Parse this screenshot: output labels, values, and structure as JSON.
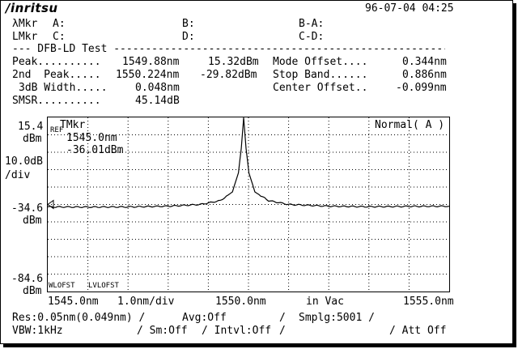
{
  "header": {
    "brand": "/inritsu",
    "datetime": "96-07-04 04:25"
  },
  "markers": {
    "row1_label": "λMkr",
    "a": "A:",
    "b": "B:",
    "ba": "B-A:",
    "row2_label": "LMkr",
    "c": "C:",
    "d": "D:",
    "cd": "C-D:"
  },
  "section": {
    "title": "--- DFB-LD Test -------------------------------------------------------"
  },
  "results": {
    "peak_label": "Peak..........",
    "peak_wl": "1549.88nm",
    "peak_level": "15.32dBm",
    "mode_offset_label": "Mode Offset....",
    "mode_offset_val": "0.344nm",
    "peak2_label": "2nd  Peak.....",
    "peak2_wl": "1550.224nm",
    "peak2_level": "-29.82dBm",
    "stop_band_label": "Stop Band......",
    "stop_band_val": "0.886nm",
    "width_label": "3dB Width.....",
    "width_val": "0.048nm",
    "center_offset_label": "Center Offset..",
    "center_offset_val": "-0.099nm",
    "smsr_label": "SMSR..........",
    "smsr_val": "45.14dB"
  },
  "axes": {
    "ytop": "15.4",
    "ytop_unit": "dBm",
    "scale": "10.0dB",
    "scale_unit": "/div",
    "yref": "-34.6",
    "yref_unit": "dBm",
    "ybot": "-84.6",
    "ybot_unit": "dBm",
    "xstart": "1545.0nm",
    "xdiv": "1.0nm/div",
    "xcenter": "1550.0nm",
    "xmedium": "in Vac",
    "xstop": "1555.0nm"
  },
  "plot_labels": {
    "ref": "REF",
    "tmkr": "TMkr",
    "tmkr_wl": "1545.0nm",
    "tmkr_level": "-36.01dBm",
    "mode": "Normal( A )",
    "wlofst": "WLOFST",
    "lvlofst": "LVLOFST"
  },
  "chart_data": {
    "type": "line",
    "x_unit": "nm",
    "y_unit": "dBm",
    "xlim": [
      1545.0,
      1555.0
    ],
    "ylim": [
      -84.6,
      15.4
    ],
    "series": [
      {
        "x": [
          1545.0,
          1546.0,
          1547.0,
          1548.0,
          1548.8,
          1549.3,
          1549.6,
          1549.75,
          1549.82,
          1549.86,
          1549.88,
          1549.9,
          1549.94,
          1550.01,
          1550.16,
          1550.5,
          1551.0,
          1552.0,
          1553.0,
          1554.0,
          1555.0
        ],
        "y": [
          -36.0,
          -36.1,
          -36.0,
          -35.6,
          -34.6,
          -32.4,
          -27.4,
          -16.4,
          -2.4,
          9.6,
          15.3,
          9.6,
          -2.4,
          -16.4,
          -27.4,
          -32.4,
          -34.6,
          -35.6,
          -35.9,
          -35.7,
          -35.6
        ]
      }
    ]
  },
  "settings": {
    "res": "Res:0.05nm(0.049nm) /",
    "avg": "Avg:Off",
    "sep1": "/",
    "smplg": "Smplg:5001 /",
    "vbw": "VBW:1kHz",
    "sm": "/ Sm:Off",
    "intvl": "/ Intvl:Off",
    "sep2": "/",
    "att": "/ Att Off"
  }
}
